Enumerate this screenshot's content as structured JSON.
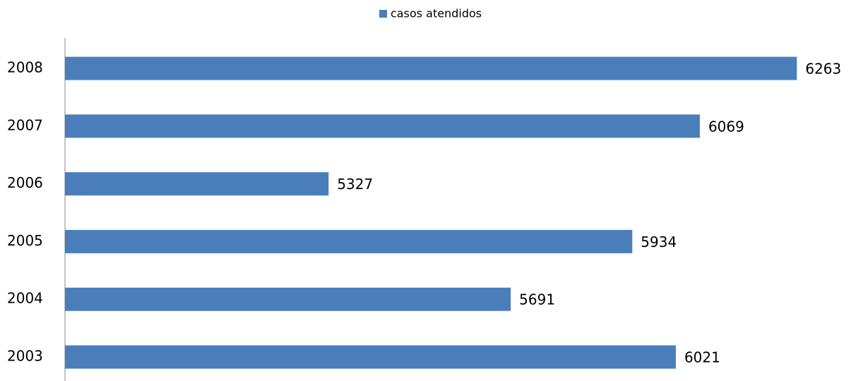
{
  "chart_data": {
    "type": "bar",
    "orientation": "horizontal",
    "categories": [
      "2003",
      "2004",
      "2005",
      "2006",
      "2007",
      "2008"
    ],
    "series": [
      {
        "name": "casos atendidos",
        "color": "#4a7ebb",
        "values": [
          6021,
          5691,
          5934,
          5327,
          6069,
          6263
        ]
      }
    ],
    "xlim": [
      4800,
      6350
    ],
    "legend": "top"
  }
}
